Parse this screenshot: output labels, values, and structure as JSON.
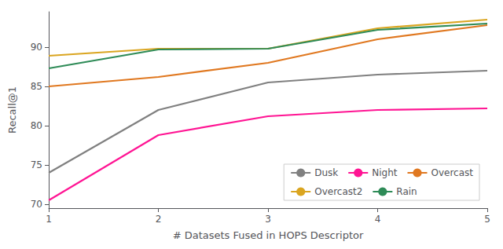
{
  "chart_data": {
    "type": "line",
    "xlabel": "# Datasets Fused in HOPS Descriptor",
    "ylabel": "Recall@1",
    "x": [
      1,
      2,
      3,
      4,
      5
    ],
    "series": [
      {
        "name": "Dusk",
        "color": "#808080",
        "values": [
          74.0,
          82.0,
          85.5,
          86.5,
          87.0
        ]
      },
      {
        "name": "Night",
        "color": "#FF1493",
        "values": [
          70.5,
          78.8,
          81.2,
          82.0,
          82.2
        ]
      },
      {
        "name": "Overcast",
        "color": "#E07820",
        "values": [
          85.0,
          86.2,
          88.0,
          91.0,
          92.8
        ]
      },
      {
        "name": "Overcast2",
        "color": "#DAA520",
        "values": [
          88.9,
          89.8,
          89.8,
          92.4,
          93.5
        ]
      },
      {
        "name": "Rain",
        "color": "#2E8B57",
        "values": [
          87.3,
          89.7,
          89.8,
          92.2,
          93.0
        ]
      }
    ],
    "xlim": [
      1,
      5
    ],
    "xticks": [
      1,
      2,
      3,
      4,
      5
    ],
    "ylim": [
      69.5,
      94.5
    ],
    "yticks": [
      70,
      75,
      80,
      85,
      90
    ],
    "grid": false,
    "legend": "lower right"
  }
}
